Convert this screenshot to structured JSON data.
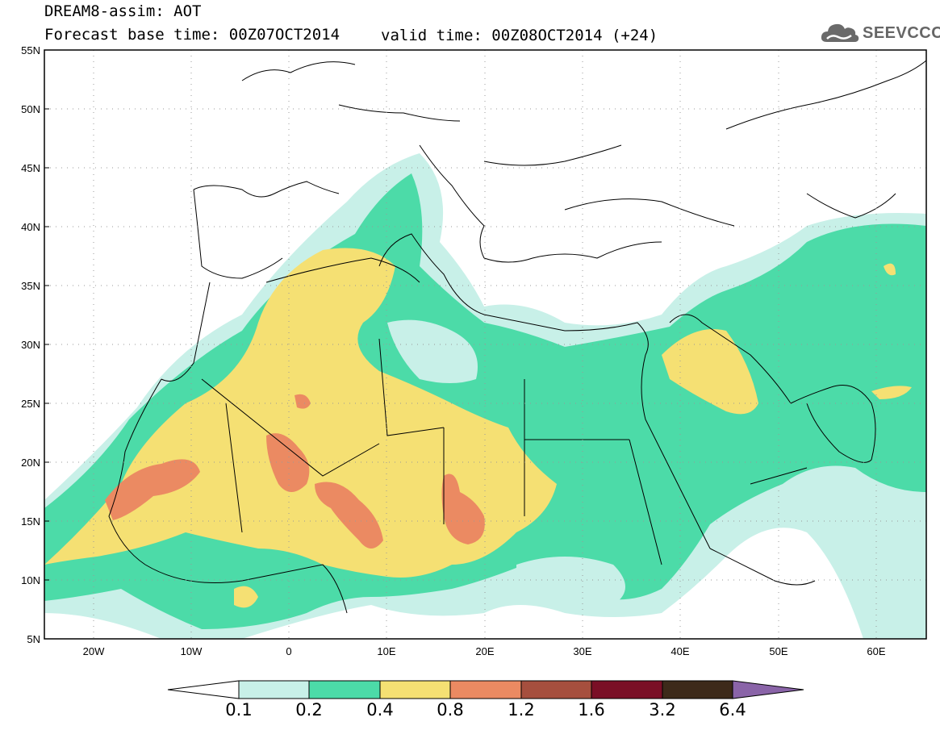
{
  "header": {
    "title": "DREAM8-assim: AOT",
    "base_time": "Forecast base time: 00Z07OCT2014",
    "valid_time": "valid time: 00Z08OCT2014 (+24)"
  },
  "logo": {
    "text": "SEEVCCC"
  },
  "axes": {
    "lat_ticks": [
      "55N",
      "50N",
      "45N",
      "40N",
      "35N",
      "30N",
      "25N",
      "20N",
      "15N",
      "10N",
      "5N"
    ],
    "lon_ticks": [
      "20W",
      "10W",
      "0",
      "10E",
      "20E",
      "30E",
      "40E",
      "50E",
      "60E"
    ],
    "lat_range": [
      5,
      55
    ],
    "lon_range": [
      -25,
      65
    ]
  },
  "legend": {
    "labels": [
      "0.1",
      "0.2",
      "0.4",
      "0.8",
      "1.2",
      "1.6",
      "3.2",
      "6.4"
    ],
    "colors": [
      "#ffffff",
      "#c8f0e8",
      "#4cdba8",
      "#f5e073",
      "#eb8a62",
      "#a64f3e",
      "#7a0f26",
      "#3d2a1a",
      "#8a64a8"
    ]
  },
  "colors": {
    "c1": "#c8f0e8",
    "c2": "#4cdba8",
    "c3": "#f5e073",
    "c4": "#eb8a62"
  }
}
